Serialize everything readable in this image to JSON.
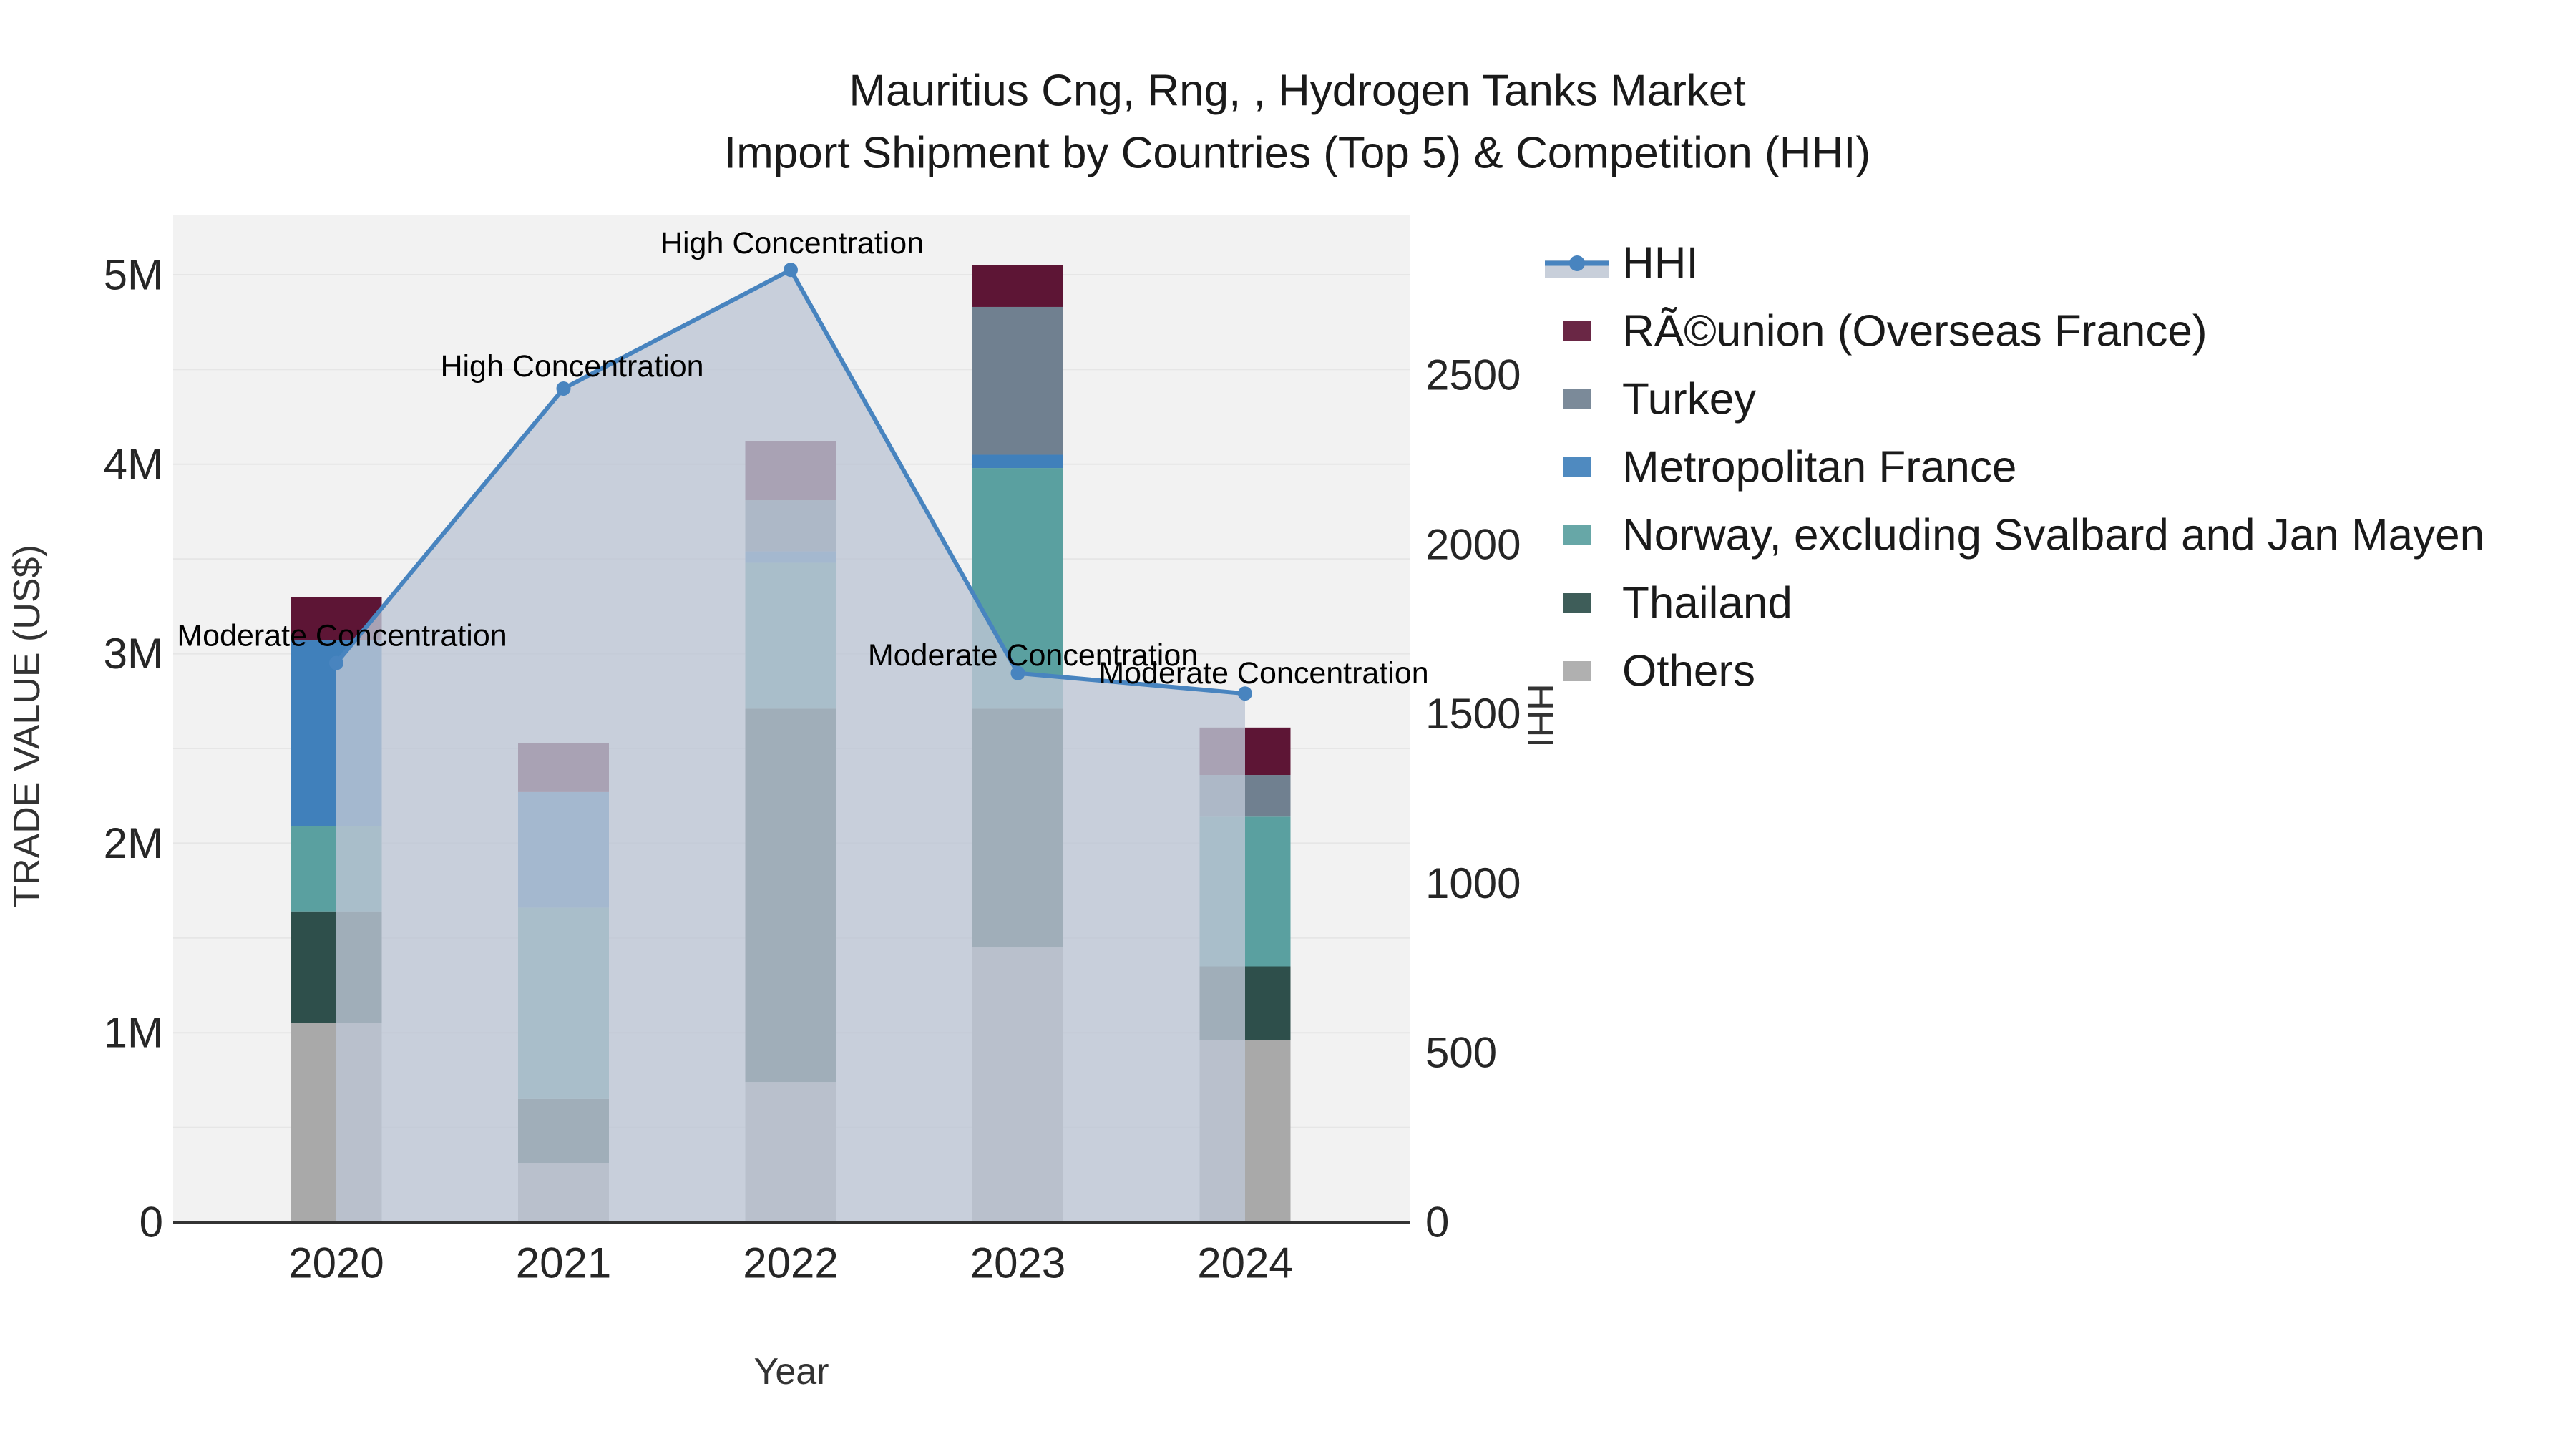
{
  "title": {
    "line1": "Mauritius Cng, Rng, , Hydrogen Tanks Market",
    "line2": "Import Shipment by Countries (Top 5) & Competition (HHI)"
  },
  "axes": {
    "x": {
      "title": "Year",
      "tick_labels": [
        "2020",
        "2021",
        "2022",
        "2023",
        "2024"
      ]
    },
    "y_left": {
      "title": "TRADE VALUE (US$)",
      "tick_labels": [
        "0",
        "1M",
        "2M",
        "3M",
        "4M",
        "5M"
      ],
      "tick_values": [
        0,
        1000000,
        2000000,
        3000000,
        4000000,
        5000000
      ],
      "max": 5317000
    },
    "y_right": {
      "title": "HHI",
      "tick_labels": [
        "0",
        "500",
        "1000",
        "1500",
        "2000",
        "2500"
      ],
      "tick_values": [
        0,
        500,
        1000,
        1500,
        2000,
        2500
      ],
      "max": 2973
    }
  },
  "legend": {
    "items": [
      {
        "label": "HHI",
        "type": "line",
        "color": "#4884bf",
        "band_color": "#c8cfda"
      },
      {
        "label": "RÃ©union (Overseas France)",
        "type": "swatch",
        "color": "#5d1535"
      },
      {
        "label": "Turkey",
        "type": "swatch",
        "color": "#708090"
      },
      {
        "label": "Metropolitan France",
        "type": "swatch",
        "color": "#4080bb"
      },
      {
        "label": "Norway, excluding Svalbard and Jan Mayen",
        "type": "swatch",
        "color": "#5aa0a0"
      },
      {
        "label": "Thailand",
        "type": "swatch",
        "color": "#2e4f4b"
      },
      {
        "label": "Others",
        "type": "swatch",
        "color": "#a9a9a9"
      }
    ]
  },
  "chart_data": {
    "type": "bar",
    "stacked": true,
    "title": "Mauritius Cng, Rng, , Hydrogen Tanks Market Import Shipment by Countries (Top 5) & Competition (HHI)",
    "xlabel": "Year",
    "ylabel": "TRADE VALUE (US$)",
    "ylabel_right": "HHI",
    "categories": [
      "2020",
      "2021",
      "2022",
      "2023",
      "2024"
    ],
    "ylim_left": [
      0,
      5317000
    ],
    "ylim_right": [
      0,
      2973
    ],
    "grid": true,
    "legend_position": "right",
    "bar_series": [
      {
        "name": "Others",
        "color": "#a9a9a9",
        "values": [
          1050000,
          310000,
          740000,
          1450000,
          960000
        ]
      },
      {
        "name": "Thailand",
        "color": "#2e4f4b",
        "values": [
          590000,
          340000,
          1970000,
          1260000,
          390000
        ]
      },
      {
        "name": "Norway, excluding Svalbard and Jan Mayen",
        "color": "#5aa0a0",
        "values": [
          450000,
          1010000,
          770000,
          1270000,
          790000
        ]
      },
      {
        "name": "Metropolitan France",
        "color": "#4080bb",
        "values": [
          980000,
          610000,
          60000,
          70000,
          0
        ]
      },
      {
        "name": "Turkey",
        "color": "#708090",
        "values": [
          0,
          0,
          270000,
          780000,
          220000
        ]
      },
      {
        "name": "RÃ©union (Overseas France)",
        "color": "#5d1535",
        "values": [
          230000,
          260000,
          310000,
          220000,
          250000
        ]
      }
    ],
    "line_series": {
      "name": "HHI",
      "axis": "right",
      "color": "#4884bf",
      "area_color": "#bdc6d4",
      "area_opacity": 0.8,
      "values": [
        1650,
        2460,
        2810,
        1620,
        1560
      ]
    },
    "annotations": [
      {
        "year": "2020",
        "text": "Moderate Concentration"
      },
      {
        "year": "2021",
        "text": "High Concentration"
      },
      {
        "year": "2022",
        "text": "High Concentration"
      },
      {
        "year": "2023",
        "text": "Moderate Concentration"
      },
      {
        "year": "2024",
        "text": "Moderate Concentration"
      }
    ]
  },
  "colors": {
    "figure_bg": "#ffffff",
    "plot_bg": "#f2f2f2",
    "gridline": "#e6e6e6",
    "axis_line": "#333333"
  }
}
